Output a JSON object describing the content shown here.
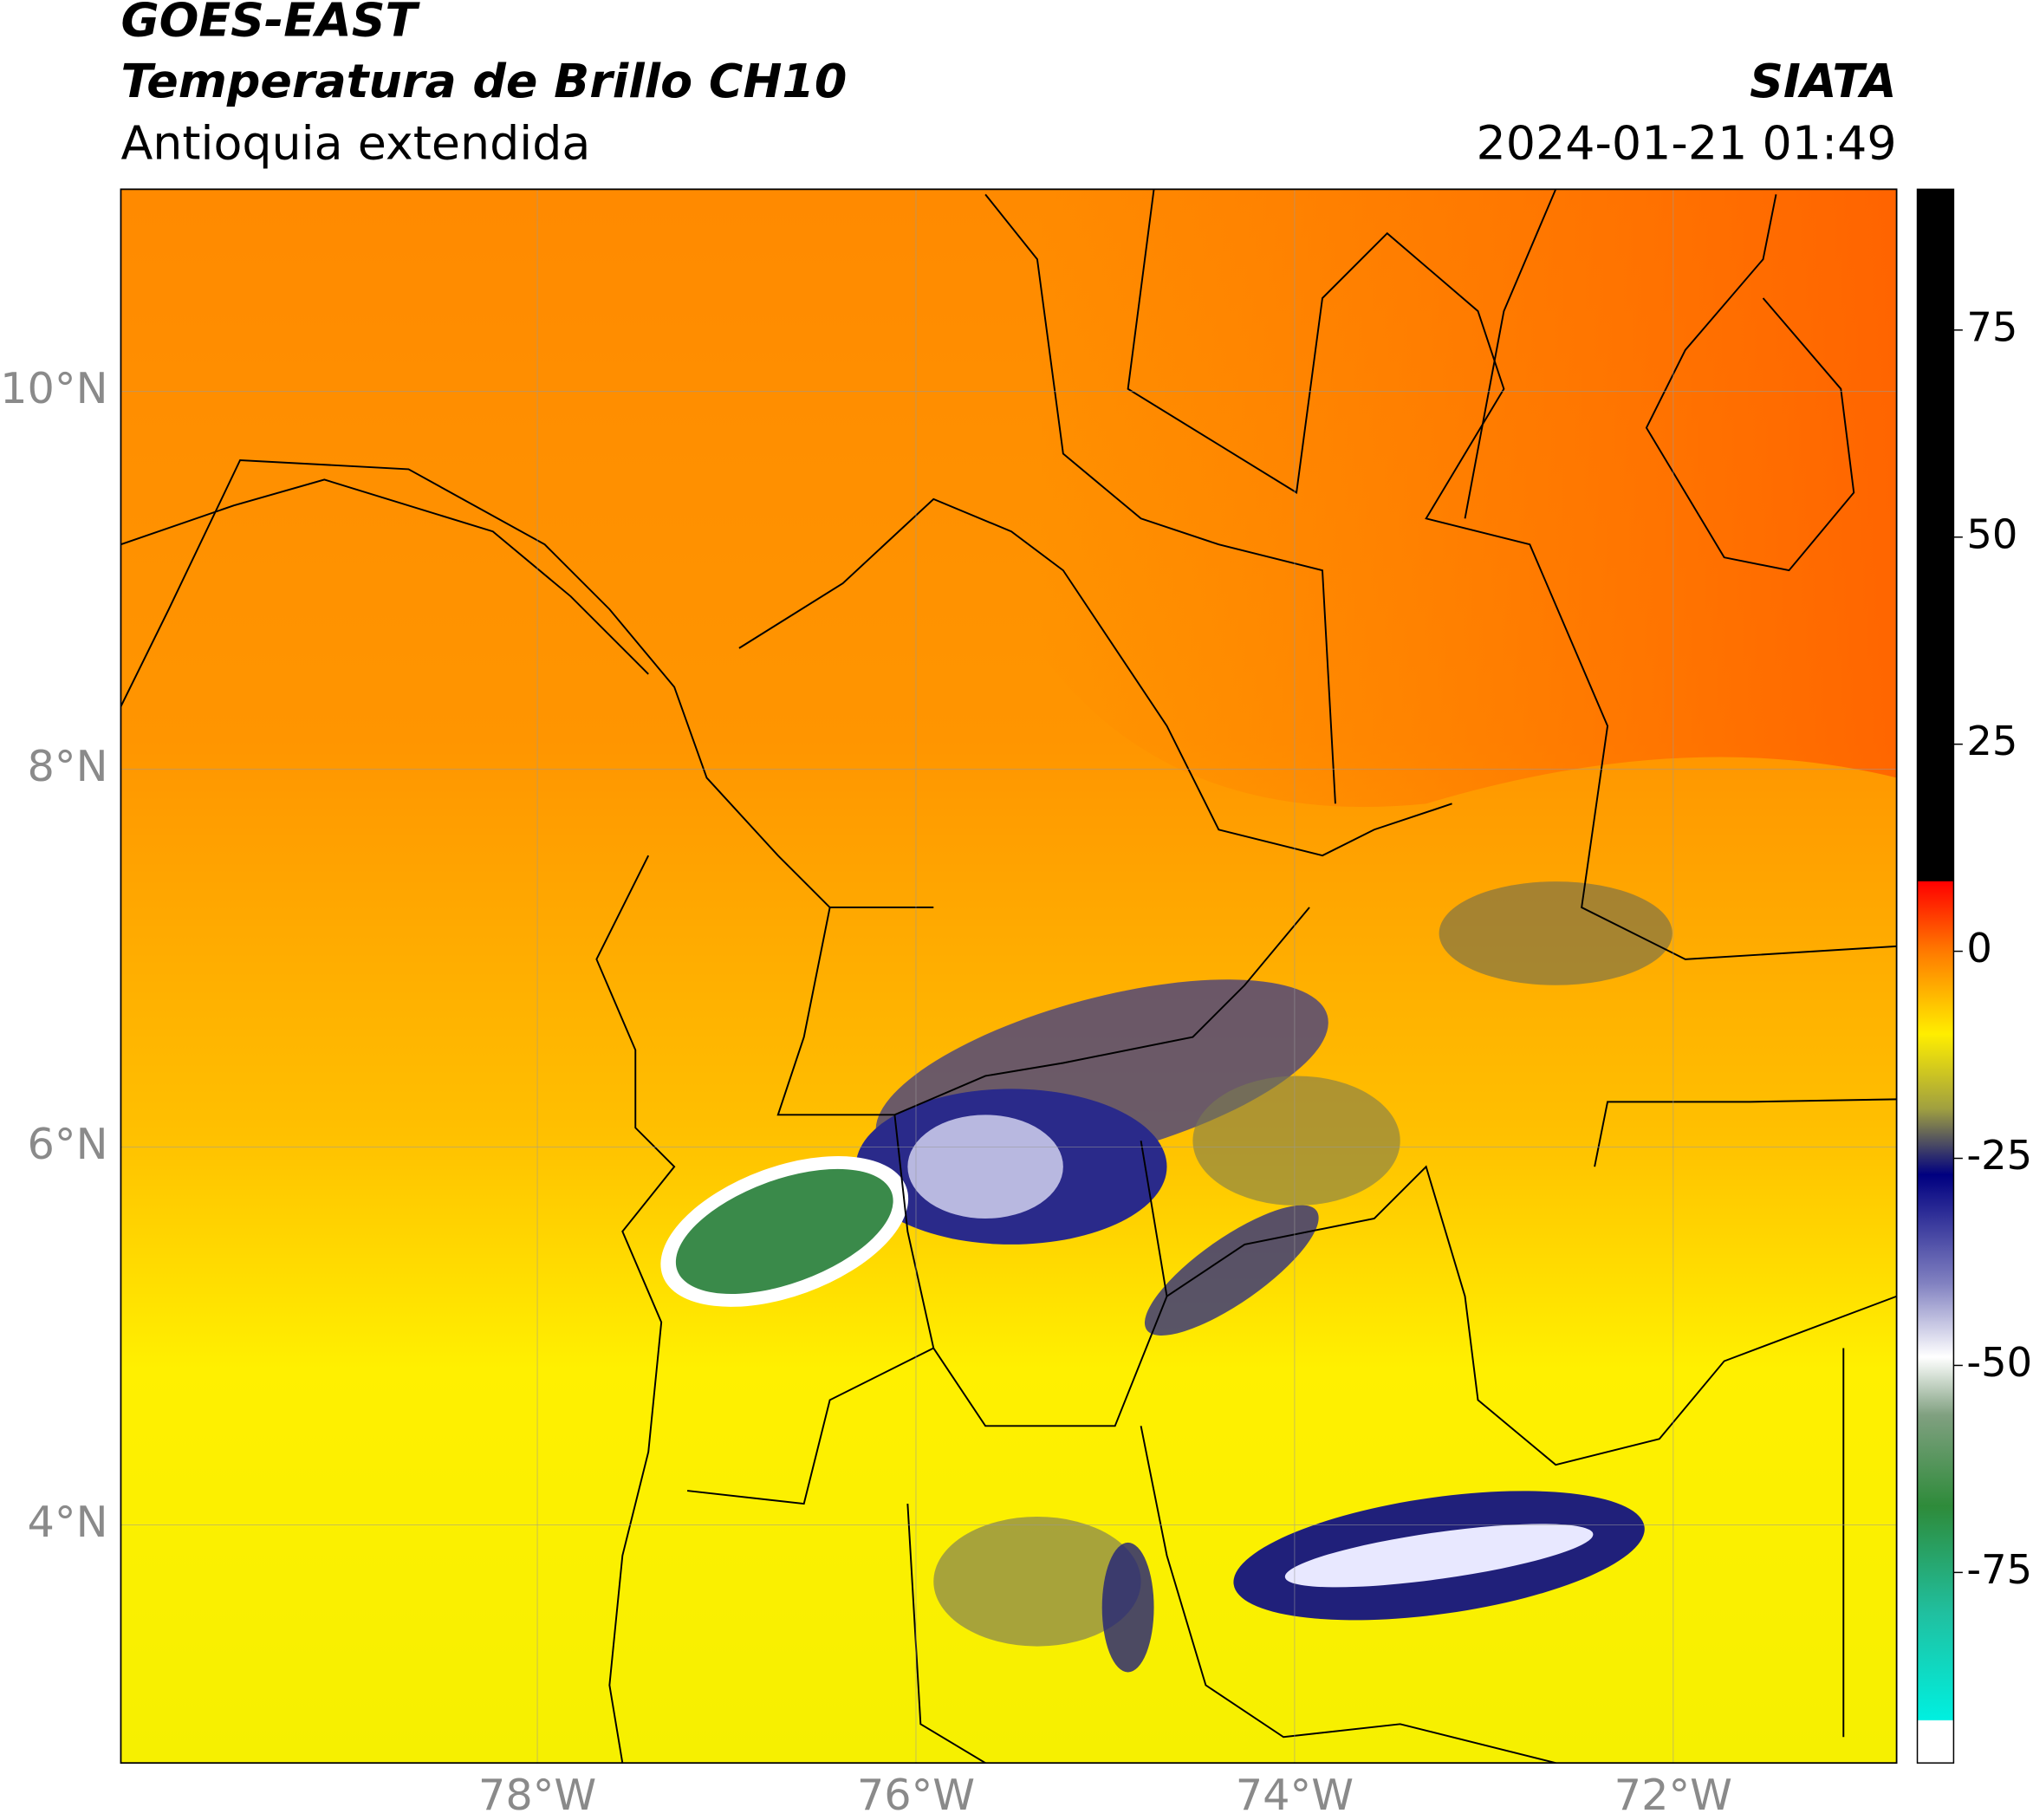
{
  "header": {
    "satellite": "GOES-EAST",
    "product": "Temperatura de Brillo CH10",
    "region": "Antioquia extendida",
    "agency": "SIATA",
    "datetime": "2024-01-21 01:49"
  },
  "map": {
    "xlim": [
      -80.2,
      -70.82
    ],
    "ylim": [
      2.74,
      11.07
    ],
    "xticks": [
      {
        "value": -78,
        "label": "78°W"
      },
      {
        "value": -76,
        "label": "76°W"
      },
      {
        "value": -74,
        "label": "74°W"
      },
      {
        "value": -72,
        "label": "72°W"
      }
    ],
    "yticks": [
      {
        "value": 4,
        "label": "4°N"
      },
      {
        "value": 6,
        "label": "6°N"
      },
      {
        "value": 8,
        "label": "8°N"
      },
      {
        "value": 10,
        "label": "10°N"
      }
    ],
    "grid": true
  },
  "colorbar": {
    "lim": [
      -98,
      92
    ],
    "ticks": [
      -75,
      -50,
      -25,
      0,
      25,
      50,
      75
    ],
    "stops": [
      {
        "value": 92,
        "color": "#000000"
      },
      {
        "value": 8.5,
        "color": "#000000"
      },
      {
        "value": 8.4,
        "color": "#ff0000"
      },
      {
        "value": 0,
        "color": "#ff7a00"
      },
      {
        "value": -10,
        "color": "#ffee00"
      },
      {
        "value": -19,
        "color": "#a0a040"
      },
      {
        "value": -27,
        "color": "#000080"
      },
      {
        "value": -40,
        "color": "#8080c0"
      },
      {
        "value": -49,
        "color": "#ffffff"
      },
      {
        "value": -56,
        "color": "#80a080"
      },
      {
        "value": -67,
        "color": "#2e8b3a"
      },
      {
        "value": -80,
        "color": "#20c0a0"
      },
      {
        "value": -92.8,
        "color": "#00f0e0"
      },
      {
        "value": -92.9,
        "color": "#ffffff"
      },
      {
        "value": -98,
        "color": "#ffffff"
      }
    ]
  }
}
